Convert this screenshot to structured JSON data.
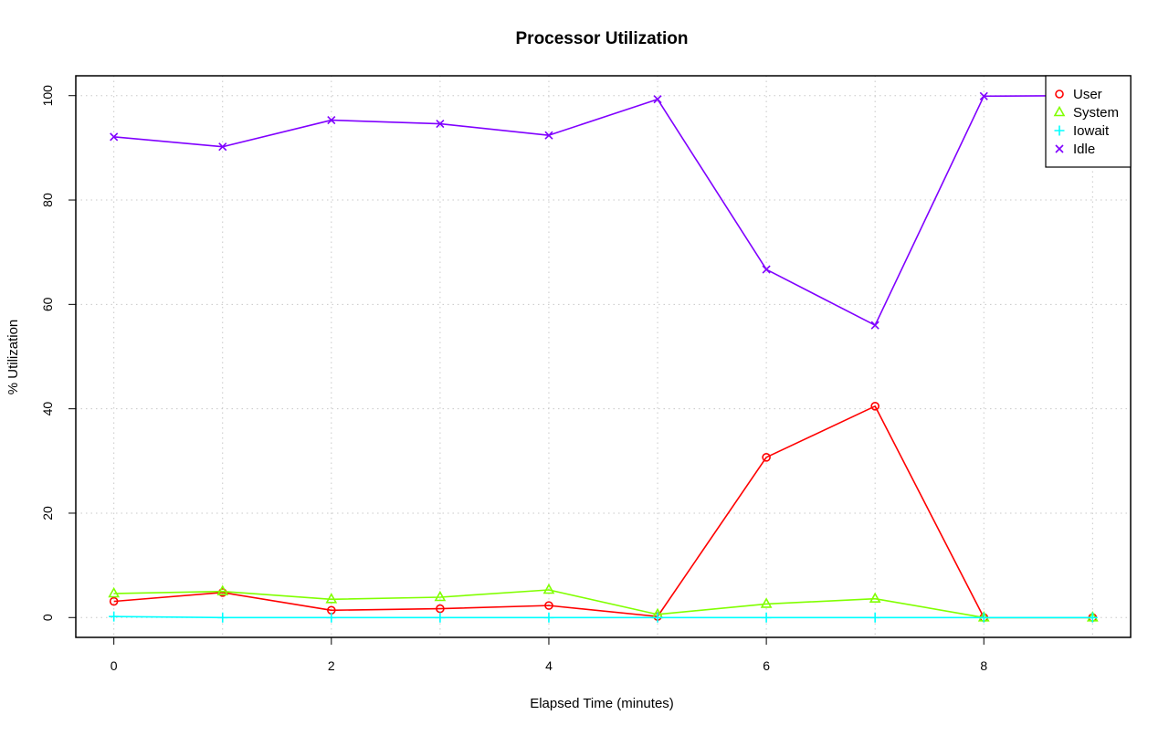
{
  "chart_data": {
    "type": "line",
    "title": "Processor Utilization",
    "xlabel": "Elapsed Time (minutes)",
    "ylabel": "% Utilization",
    "x": [
      0,
      1,
      2,
      3,
      4,
      5,
      6,
      7,
      8,
      9
    ],
    "xlim": [
      -0.35,
      9.35
    ],
    "ylim": [
      -3.8,
      103.8
    ],
    "x_ticks": [
      0,
      2,
      4,
      6,
      8
    ],
    "y_ticks": [
      0,
      20,
      40,
      60,
      80,
      100
    ],
    "grid": true,
    "legend_position": "top-right",
    "series": [
      {
        "name": "User",
        "color": "#ff0000",
        "marker": "circle",
        "values": [
          3.1,
          4.8,
          1.4,
          1.7,
          2.3,
          0.2,
          30.7,
          40.5,
          0.0,
          0.0
        ]
      },
      {
        "name": "System",
        "color": "#80ff00",
        "marker": "triangle",
        "values": [
          4.6,
          5.0,
          3.5,
          3.9,
          5.3,
          0.6,
          2.6,
          3.6,
          0.0,
          0.0
        ]
      },
      {
        "name": "Iowait",
        "color": "#00ffff",
        "marker": "plus",
        "values": [
          0.2,
          0.0,
          0.0,
          0.0,
          0.0,
          0.0,
          0.0,
          0.0,
          0.0,
          0.0
        ]
      },
      {
        "name": "Idle",
        "color": "#8000ff",
        "marker": "cross",
        "values": [
          92.1,
          90.2,
          95.3,
          94.6,
          92.4,
          99.3,
          66.7,
          56.0,
          99.9,
          100.0
        ]
      }
    ]
  }
}
